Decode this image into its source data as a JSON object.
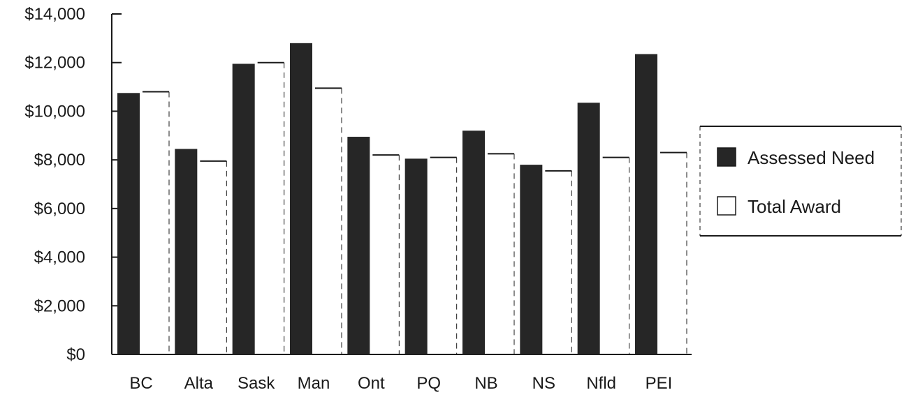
{
  "chart_data": {
    "type": "bar",
    "categories": [
      "BC",
      "Alta",
      "Sask",
      "Man",
      "Ont",
      "PQ",
      "NB",
      "NS",
      "Nfld",
      "PEI"
    ],
    "series": [
      {
        "name": "Assessed Need",
        "values": [
          10750,
          8450,
          11950,
          12800,
          8950,
          8050,
          9200,
          7800,
          10350,
          12350
        ]
      },
      {
        "name": "Total Award",
        "values": [
          10800,
          7950,
          12000,
          10950,
          8200,
          8100,
          8250,
          7550,
          8100,
          8300
        ]
      }
    ],
    "y_ticks": [
      "$0",
      "$2,000",
      "$4,000",
      "$6,000",
      "$8,000",
      "$10,000",
      "$12,000",
      "$14,000"
    ],
    "ylim": [
      0,
      14000
    ],
    "title": "",
    "xlabel": "",
    "ylabel": "",
    "legend_position": "right",
    "grid": false,
    "colors": {
      "assessed_need": "#262626",
      "total_award": "#ffffff",
      "axis": "#1a1a1a"
    }
  }
}
